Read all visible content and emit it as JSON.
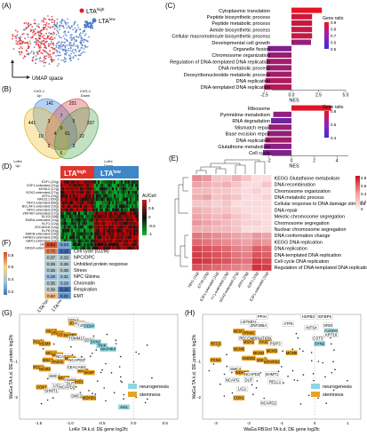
{
  "panels": {
    "A": {
      "label": "(A)",
      "legend": [
        {
          "text": "LTA",
          "sup": "high",
          "color": "#e41a1c"
        },
        {
          "text": "LTA",
          "sup": "low",
          "color": "#4a78c4"
        }
      ],
      "axis_label": "UMAP space"
    },
    "B": {
      "label": "(B)",
      "sets": [
        "CVG-1 Up",
        "CVG-1 Down",
        "LoKe Up",
        "LoKe Down"
      ],
      "set_labels": {
        "cvg_up_1": "CVG-1",
        "cvg_up_2": "Up",
        "cvg_dn_1": "CVG-1",
        "cvg_dn_2": "Down",
        "loke_up_1": "LoKe",
        "loke_up_2": "Up",
        "loke_dn_1": "LoKe",
        "loke_dn_2": "Down"
      },
      "counts": [
        "141",
        "221",
        "441",
        "337",
        "7",
        "3",
        "5",
        "10",
        "22",
        "0",
        "4",
        "61",
        "2",
        "3",
        "6"
      ]
    },
    "C": {
      "label": "(C)",
      "chart_data": [
        {
          "type": "bar",
          "orientation": "horizontal",
          "categories": [
            "Cytoplasmic translation",
            "Peptide biosynthetic process",
            "Peptide metabolic process",
            "Amide biosynthetic process",
            "Cellular macromolecule biosynthetic process",
            "Developmental cell growth",
            "Organelle fission",
            "Chromosome organization",
            "Regulation of DNA-templated DNA replication",
            "DNA metabolic process",
            "Deoxyribonucleotide metabolic process",
            "DNA replication",
            "DNA-templated DNA replication"
          ],
          "values": [
            2.8,
            1.9,
            1.9,
            1.9,
            1.9,
            1.8,
            -2.2,
            -2.2,
            -2.3,
            -2.3,
            -2.3,
            -2.4,
            -2.5
          ],
          "gene_ratio": [
            0.99,
            0.85,
            0.82,
            0.8,
            0.78,
            0.5,
            0.4,
            0.55,
            0.6,
            0.55,
            0.6,
            0.65,
            0.7
          ],
          "xlabel": "NES",
          "xticks": [
            "-2.5",
            "0.0",
            "2.5",
            "5.0"
          ],
          "xlim": [
            -2.8,
            5.0
          ],
          "legend_title": "Gene ratio",
          "legend_ticks": [
            "0.9",
            "0.8",
            "0.7",
            "0.6",
            "0.5"
          ]
        },
        {
          "type": "bar",
          "orientation": "horizontal",
          "categories": [
            "Ribosome",
            "Pyrimidine metabolism",
            "RNA degradation",
            "Mismatch repair",
            "Base excision repair",
            "DNA replication",
            "Glutathione metabolism",
            "Cell cycle"
          ],
          "values": [
            3.5,
            -1.6,
            -1.8,
            -2.0,
            -2.1,
            -2.3,
            -2.4,
            -2.5
          ],
          "gene_ratio": [
            0.95,
            0.5,
            0.3,
            0.55,
            0.5,
            0.6,
            0.45,
            0.4
          ],
          "xlabel": "NES",
          "xticks": [
            "-2",
            "0",
            "2",
            "4"
          ],
          "xlim": [
            -2.8,
            4.6
          ],
          "legend_title": "Gene ratio",
          "legend_ticks": [
            "0.8",
            "0.6",
            "0.4"
          ]
        }
      ]
    },
    "D": {
      "label": "(D)",
      "groups": [
        {
          "text": "LTA",
          "sup": "high"
        },
        {
          "text": "LTA",
          "sup": "low"
        }
      ],
      "rows": [
        "E2F1 (10g)",
        "E2F1-extended (11g)",
        "MYBL2 (17g)",
        "SOX2-extended (27g)",
        "ATF4 (29g)",
        "NFE2L1 (60g)",
        "YBX1-extended (66g)",
        "BCLAF1-extended (15g)",
        "NFIC-extended (25g)",
        "ZNF467-extended (17g)",
        "DLX3 (18g)",
        "RARA-extended (10g)",
        "KLF1 (12g)",
        "ZSCAN18 (14g)",
        "KLF8 (20g)",
        "MAFB-extended (15g)",
        "HAND1-extended (28g)",
        "GBX1-extended (15g)",
        "DRGX (11g)",
        "DRGX-extended (17g)"
      ],
      "legend_title": "AUCell",
      "legend_ticks": [
        "1",
        "0.5",
        "0",
        "-0.5",
        "-1"
      ]
    },
    "E": {
      "label": "(E)",
      "rows": [
        "KEGG Glutathione metabolism",
        "DNA recombination",
        "Chromosome organization",
        "DNA metabolic process",
        "Cellular response to DNA damage stimulus",
        "DNA repair",
        "Meiotic chromosome segregation",
        "Chromosome segregation",
        "Nuclear chromosome segregation",
        "DNA conformation change",
        "KEGG DNA replication",
        "DNA replication",
        "DNA-templated DNA replication",
        "Cell cycle DNA replication",
        "Regulation of DNA-templated DNA replication"
      ],
      "cols": [
        "YBX1 (11g)",
        "ETV6 (10g)",
        "E2F1-extended (11g)",
        "YY1-extended (13g)",
        "SOX2-extended (27g)",
        "ATF4 (29g)",
        "E2F1 (10g)",
        "E2F1-extended (11g)"
      ],
      "legend_ticks": [
        "0.8",
        "0.6",
        "0.4",
        "0.2",
        "0"
      ]
    },
    "F": {
      "label": "(F)",
      "chart_data": {
        "type": "heatmap",
        "rows": [
          "Cell cycle (HMG-rich)",
          "Cell cycle (G2/M)",
          "NPC/OPC",
          "Unfolded protein response",
          "Stress",
          "NPC Glioma",
          "Chromatin",
          "Respiration",
          "EMT"
        ],
        "cols": [
          "LTA high",
          "LTA low"
        ],
        "col_labels": [
          {
            "text": "LTA",
            "sup": "high"
          },
          {
            "text": "LTA",
            "sup": "low"
          }
        ],
        "values": [
          [
            0.84,
            0.24
          ],
          [
            0.73,
            0.15
          ],
          [
            0.37,
            0.33
          ],
          [
            0.35,
            0.36
          ],
          [
            0.35,
            0.35
          ],
          [
            0.29,
            0.31
          ],
          [
            0.35,
            0.29
          ],
          [
            0.39,
            0.15
          ],
          [
            0.6,
            0.21
          ]
        ],
        "labels": [
          [
            "0.84",
            "0.24"
          ],
          [
            "0.73",
            "0.15"
          ],
          [
            "0.37",
            "0.33"
          ],
          [
            "0.35",
            "0.36"
          ],
          [
            "0.35",
            "0.35"
          ],
          [
            "0.29",
            "0.31"
          ],
          [
            "0.35",
            "0.29"
          ],
          [
            "0.39",
            "0.15"
          ],
          [
            "0.60",
            "0.21"
          ]
        ],
        "legend_ticks": [
          "0.8",
          "0.6",
          "0.4",
          "0.2"
        ]
      }
    },
    "G": {
      "label": "(G)",
      "chart_data": {
        "type": "scatter",
        "xlabel": "LoKe TA k.d. DE gene log2fc",
        "ylabel": "WaGa TA k.d. DE protein log2fc",
        "xticks": [
          "-1.5",
          "-1.0",
          "-0.5",
          "0.0",
          "0.5"
        ],
        "yticks": [
          "-1",
          "-2"
        ],
        "xlim": [
          -1.8,
          0.7
        ],
        "ylim": [
          -2.6,
          0.3
        ],
        "labeled_points": [
          {
            "label": "GPX4",
            "x": -0.95,
            "y": 0.1,
            "category": "none"
          },
          {
            "label": "KIF18B",
            "x": -0.9,
            "y": 0.02,
            "category": "stemness"
          },
          {
            "label": "POP7",
            "x": -0.85,
            "y": 0.0,
            "category": "none"
          },
          {
            "label": "CCP8",
            "x": -0.8,
            "y": -0.02,
            "category": "none"
          },
          {
            "label": "ZNA01",
            "x": -0.75,
            "y": -0.04,
            "category": "none"
          },
          {
            "label": "CD24",
            "x": -0.7,
            "y": -0.06,
            "category": "neurogenesis"
          },
          {
            "label": "HMNT",
            "x": -1.3,
            "y": -0.2,
            "category": "stemness"
          },
          {
            "label": "PRIM1",
            "x": -1.2,
            "y": -0.25,
            "category": "stemness"
          },
          {
            "label": "FOXM1",
            "x": -1.1,
            "y": -0.3,
            "category": "stemness"
          },
          {
            "label": "NASP1",
            "x": -1.0,
            "y": -0.32,
            "category": "stemness"
          },
          {
            "label": "PCNA",
            "x": -1.5,
            "y": -0.5,
            "category": "stemness"
          },
          {
            "label": "MCM4",
            "x": -1.4,
            "y": -0.55,
            "category": "stemness"
          },
          {
            "label": "TOMM12",
            "x": -0.9,
            "y": -0.4,
            "category": "none"
          },
          {
            "label": "SDC1",
            "x": -0.7,
            "y": -0.45,
            "category": "none"
          },
          {
            "label": "SYN2",
            "x": -0.6,
            "y": -0.5,
            "category": "neurogenesis"
          },
          {
            "label": "TNIK",
            "x": -0.5,
            "y": -0.6,
            "category": "neurogenesis"
          },
          {
            "label": "MAP4K4",
            "x": -0.4,
            "y": -0.7,
            "category": "neurogenesis"
          },
          {
            "label": "MCM6",
            "x": -1.3,
            "y": -0.8,
            "category": "stemness"
          },
          {
            "label": "MCM7",
            "x": -1.2,
            "y": -0.85,
            "category": "stemness"
          },
          {
            "label": "NCAPG2",
            "x": -1.1,
            "y": -0.9,
            "category": "none"
          },
          {
            "label": "MCM5",
            "x": -1.0,
            "y": -0.95,
            "category": "stemness"
          },
          {
            "label": "MSH6",
            "x": -1.35,
            "y": -1.0,
            "category": "stemness"
          },
          {
            "label": "PAICS",
            "x": -1.2,
            "y": -1.05,
            "category": "stemness"
          },
          {
            "label": "NCAPD3",
            "x": -0.9,
            "y": -1.0,
            "category": "none"
          },
          {
            "label": "PCNA",
            "x": -1.5,
            "y": -1.2,
            "category": "stemness"
          },
          {
            "label": "MCM3",
            "x": -1.4,
            "y": -1.25,
            "category": "stemness"
          },
          {
            "label": "RFC3",
            "x": -0.8,
            "y": -1.3,
            "category": "stemness"
          },
          {
            "label": "CEACAM1",
            "x": -0.9,
            "y": -1.2,
            "category": "none"
          },
          {
            "label": "NASP",
            "x": -0.7,
            "y": -1.35,
            "category": "stemness"
          },
          {
            "label": "SMC4",
            "x": -1.25,
            "y": -1.45,
            "category": "none"
          },
          {
            "label": "MCM2",
            "x": -1.1,
            "y": -1.5,
            "category": "stemness"
          },
          {
            "label": "SMC2",
            "x": -1.0,
            "y": -1.55,
            "category": "none"
          },
          {
            "label": "WDHD1",
            "x": -0.9,
            "y": -1.6,
            "category": "stemness"
          },
          {
            "label": "COK1",
            "x": -1.45,
            "y": -1.75,
            "category": "stemness"
          },
          {
            "label": "LIG1",
            "x": -1.2,
            "y": -1.7,
            "category": "none"
          },
          {
            "label": "NCAPD2",
            "x": -1.05,
            "y": -1.75,
            "category": "none"
          },
          {
            "label": "DUT",
            "x": -1.0,
            "y": -1.65,
            "category": "none"
          },
          {
            "label": "SHMT1",
            "x": -1.3,
            "y": -1.85,
            "category": "none"
          },
          {
            "label": "SMC2",
            "x": -0.9,
            "y": -2.0,
            "category": "none"
          },
          {
            "label": "WDHD1",
            "x": -0.7,
            "y": -2.05,
            "category": "stemness"
          },
          {
            "label": "AVIL",
            "x": -0.15,
            "y": -2.3,
            "category": "neurogenesis"
          }
        ],
        "legend": [
          {
            "name": "neurogenesis",
            "color": "#8fd7e0"
          },
          {
            "name": "stemness",
            "color": "#e8a322"
          }
        ]
      }
    },
    "H": {
      "label": "(H)",
      "chart_data": {
        "type": "scatter",
        "xlabel": "WaGa RB1kd TA k.d. DE gene log2fc",
        "ylabel": "WaGa TA k.d. DE protein log2fc",
        "xticks": [
          "-3",
          "-2",
          "-1",
          "0",
          "1"
        ],
        "yticks": [
          "-1",
          "-2"
        ],
        "xlim": [
          -3.4,
          1.4
        ],
        "ylim": [
          -2.6,
          0.3
        ],
        "labeled_points": [
          {
            "label": "PPIH",
            "x": -1.6,
            "y": 0.2,
            "category": "none"
          },
          {
            "label": "HSPB3",
            "x": -0.2,
            "y": 0.2,
            "category": "none"
          },
          {
            "label": "IGFBP5",
            "x": 0.3,
            "y": 0.2,
            "category": "none"
          },
          {
            "label": "LETMD1",
            "x": -2.0,
            "y": 0.05,
            "category": "none"
          },
          {
            "label": "ATF5",
            "x": -0.8,
            "y": 0.0,
            "category": "none"
          },
          {
            "label": "ZNF385A",
            "x": -1.7,
            "y": -0.05,
            "category": "none"
          },
          {
            "label": "SRM",
            "x": 0.4,
            "y": -0.05,
            "category": "none"
          },
          {
            "label": "INTS4",
            "x": -0.1,
            "y": -0.1,
            "category": "none"
          },
          {
            "label": "CADPS",
            "x": 0.5,
            "y": -0.2,
            "category": "neurogenesis"
          },
          {
            "label": "MCM4",
            "x": -2.3,
            "y": -0.2,
            "category": "stemness"
          },
          {
            "label": "PRIM1",
            "x": -2.0,
            "y": -0.25,
            "category": "stemness"
          },
          {
            "label": "KRT18",
            "x": 0.5,
            "y": -0.3,
            "category": "none"
          },
          {
            "label": "RECOMBINATION",
            "x": -1.8,
            "y": -0.4,
            "category": "none"
          },
          {
            "label": "CST3",
            "x": 0.1,
            "y": -0.4,
            "category": "none"
          },
          {
            "label": "RFC3",
            "x": -3.0,
            "y": -0.55,
            "category": "stemness"
          },
          {
            "label": "MSH2",
            "x": -2.0,
            "y": -0.5,
            "category": "stemness"
          },
          {
            "label": "PAICS",
            "x": -1.5,
            "y": -0.5,
            "category": "stemness"
          },
          {
            "label": "PSIP3",
            "x": -1.2,
            "y": -0.55,
            "category": "none"
          },
          {
            "label": "SYN2",
            "x": 0.15,
            "y": -0.55,
            "category": "neurogenesis"
          },
          {
            "label": "MCM6",
            "x": -2.3,
            "y": -0.7,
            "category": "stemness"
          },
          {
            "label": "MCM2",
            "x": -1.7,
            "y": -0.8,
            "category": "stemness"
          },
          {
            "label": "MCM3",
            "x": -1.3,
            "y": -0.75,
            "category": "stemness"
          },
          {
            "label": "MCM6",
            "x": -0.7,
            "y": -0.8,
            "category": "stemness"
          },
          {
            "label": "PCNA",
            "x": -3.0,
            "y": -1.0,
            "category": "stemness"
          },
          {
            "label": "HMGB2",
            "x": -2.0,
            "y": -0.95,
            "category": "stemness"
          },
          {
            "label": "MSH6",
            "x": -1.6,
            "y": -1.0,
            "category": "stemness"
          },
          {
            "label": "MTHFD2",
            "x": -1.3,
            "y": -1.05,
            "category": "stemness"
          },
          {
            "label": "SMC4",
            "x": -2.4,
            "y": -1.25,
            "category": "none"
          },
          {
            "label": "WDHD1",
            "x": -2.2,
            "y": -1.35,
            "category": "stemness"
          },
          {
            "label": "NCAPD3",
            "x": -1.9,
            "y": -1.4,
            "category": "none"
          },
          {
            "label": "SHMT1",
            "x": -1.3,
            "y": -1.4,
            "category": "none"
          },
          {
            "label": "NCAPG",
            "x": -2.5,
            "y": -1.55,
            "category": "none"
          },
          {
            "label": "DUT",
            "x": -2.0,
            "y": -1.55,
            "category": "none"
          },
          {
            "label": "RELL1",
            "x": -1.2,
            "y": -1.6,
            "category": "none"
          },
          {
            "label": "LIG1",
            "x": -2.2,
            "y": -1.8,
            "category": "none"
          },
          {
            "label": "COK1",
            "x": -2.3,
            "y": -2.05,
            "category": "stemness"
          },
          {
            "label": "NCAPD2",
            "x": -1.4,
            "y": -2.2,
            "category": "none"
          }
        ],
        "legend": [
          {
            "name": "neurogenesis",
            "color": "#8fd7e0"
          },
          {
            "name": "stemness",
            "color": "#e8a322"
          }
        ]
      }
    }
  }
}
